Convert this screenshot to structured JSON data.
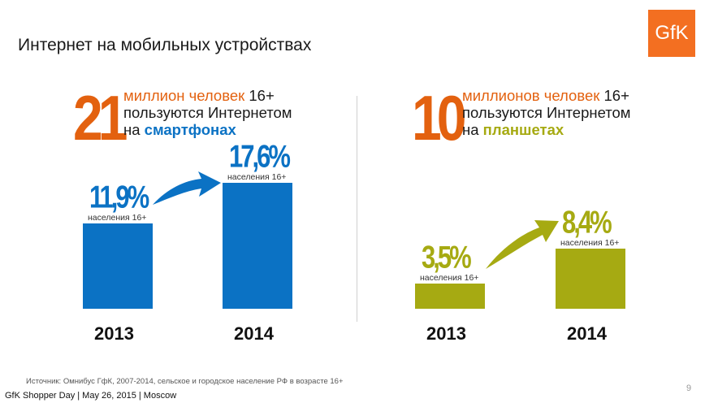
{
  "title": "Интернет на мобильных устройствах",
  "logo_text": "GfK",
  "colors": {
    "orange": "#e3610f",
    "blue": "#0b72c4",
    "olive": "#a6aa12",
    "logo": "#f36f21"
  },
  "panels": [
    {
      "big_number": "21",
      "line1_accent": "миллион человек",
      "line1_rest": " 16+",
      "line2": "пользуются Интернетом",
      "line3_prefix": "на ",
      "line3_accent": "смартфонах"
    },
    {
      "big_number": "10",
      "line1_accent": "миллионов человек",
      "line1_rest": " 16+",
      "line2": "пользуются Интернетом",
      "line3_prefix": "на ",
      "line3_accent": "планшетах"
    }
  ],
  "chart_data": [
    {
      "type": "bar",
      "categories": [
        "2013",
        "2014"
      ],
      "values": [
        11.9,
        17.6
      ],
      "value_labels": [
        "11,9%",
        "17,6%"
      ],
      "value_sublabel": "населения 16+",
      "color": "#0b72c4"
    },
    {
      "type": "bar",
      "categories": [
        "2013",
        "2014"
      ],
      "values": [
        3.5,
        8.4
      ],
      "value_labels": [
        "3,5%",
        "8,4%"
      ],
      "value_sublabel": "населения 16+",
      "color": "#a6aa12"
    }
  ],
  "source": "Источник: Омнибус ГфК, 2007-2014, сельское и городское население РФ в возрасте 16+",
  "footer": "GfK Shopper Day | May 26, 2015 | Moscow",
  "page_number": "9"
}
